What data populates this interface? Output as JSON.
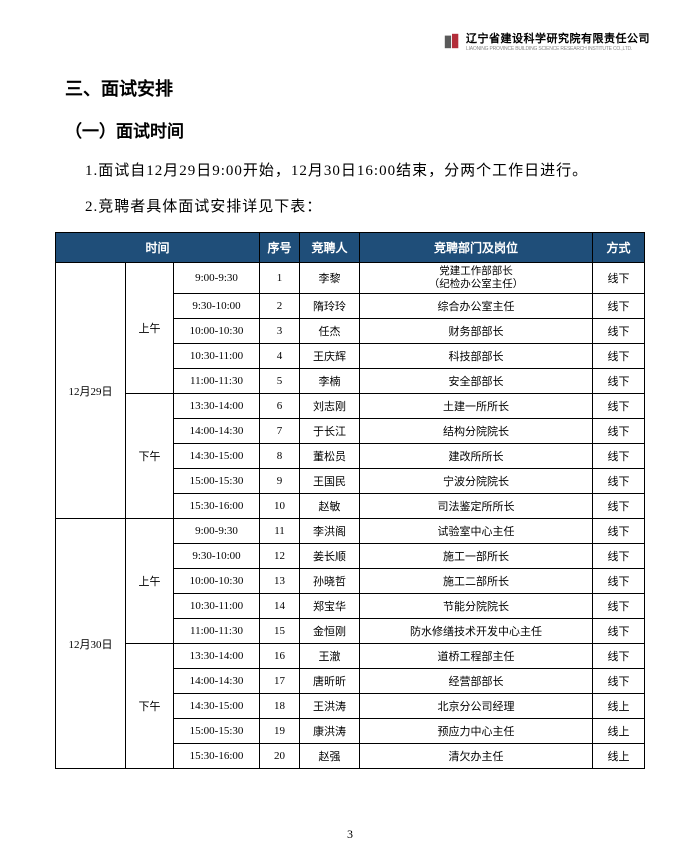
{
  "logo": {
    "company_name": "辽宁省建设科学研究院有限责任公司",
    "company_en": "LIAONING PROVINCE BUILDING SCIENCE RESEARCH INSTITUTE CO.,LTD.",
    "icon_color1": "#5a5a5a",
    "icon_color2": "#b32d3a"
  },
  "headings": {
    "section": "三、面试安排",
    "subsection": "（一）面试时间"
  },
  "paragraphs": {
    "p1": "1.面试自12月29日9:00开始，12月30日16:00结束，分两个工作日进行。",
    "p2": "2.竞聘者具体面试安排详见下表："
  },
  "table": {
    "headers": {
      "time": "时间",
      "seq": "序号",
      "name": "竞聘人",
      "dept": "竞聘部门及岗位",
      "method": "方式"
    },
    "days": [
      {
        "date": "12月29日",
        "sessions": [
          {
            "ampm": "上午",
            "rows": [
              {
                "slot": "9:00-9:30",
                "seq": "1",
                "name": "李黎",
                "dept": "党建工作部部长\n（纪检办公室主任）",
                "method": "线下"
              },
              {
                "slot": "9:30-10:00",
                "seq": "2",
                "name": "隋玲玲",
                "dept": "综合办公室主任",
                "method": "线下"
              },
              {
                "slot": "10:00-10:30",
                "seq": "3",
                "name": "任杰",
                "dept": "财务部部长",
                "method": "线下"
              },
              {
                "slot": "10:30-11:00",
                "seq": "4",
                "name": "王庆辉",
                "dept": "科技部部长",
                "method": "线下"
              },
              {
                "slot": "11:00-11:30",
                "seq": "5",
                "name": "李楠",
                "dept": "安全部部长",
                "method": "线下"
              }
            ]
          },
          {
            "ampm": "下午",
            "rows": [
              {
                "slot": "13:30-14:00",
                "seq": "6",
                "name": "刘志刚",
                "dept": "土建一所所长",
                "method": "线下"
              },
              {
                "slot": "14:00-14:30",
                "seq": "7",
                "name": "于长江",
                "dept": "结构分院院长",
                "method": "线下"
              },
              {
                "slot": "14:30-15:00",
                "seq": "8",
                "name": "董松员",
                "dept": "建改所所长",
                "method": "线下"
              },
              {
                "slot": "15:00-15:30",
                "seq": "9",
                "name": "王国民",
                "dept": "宁波分院院长",
                "method": "线下"
              },
              {
                "slot": "15:30-16:00",
                "seq": "10",
                "name": "赵敏",
                "dept": "司法鉴定所所长",
                "method": "线下"
              }
            ]
          }
        ]
      },
      {
        "date": "12月30日",
        "sessions": [
          {
            "ampm": "上午",
            "rows": [
              {
                "slot": "9:00-9:30",
                "seq": "11",
                "name": "李洪阁",
                "dept": "试验室中心主任",
                "method": "线下"
              },
              {
                "slot": "9:30-10:00",
                "seq": "12",
                "name": "姜长顺",
                "dept": "施工一部所长",
                "method": "线下"
              },
              {
                "slot": "10:00-10:30",
                "seq": "13",
                "name": "孙晓哲",
                "dept": "施工二部所长",
                "method": "线下"
              },
              {
                "slot": "10:30-11:00",
                "seq": "14",
                "name": "郑宝华",
                "dept": "节能分院院长",
                "method": "线下"
              },
              {
                "slot": "11:00-11:30",
                "seq": "15",
                "name": "金恒刚",
                "dept": "防水修缮技术开发中心主任",
                "method": "线下"
              }
            ]
          },
          {
            "ampm": "下午",
            "rows": [
              {
                "slot": "13:30-14:00",
                "seq": "16",
                "name": "王澈",
                "dept": "道桥工程部主任",
                "method": "线下"
              },
              {
                "slot": "14:00-14:30",
                "seq": "17",
                "name": "唐昕昕",
                "dept": "经营部部长",
                "method": "线下"
              },
              {
                "slot": "14:30-15:00",
                "seq": "18",
                "name": "王洪涛",
                "dept": "北京分公司经理",
                "method": "线上"
              },
              {
                "slot": "15:00-15:30",
                "seq": "19",
                "name": "康洪涛",
                "dept": "预应力中心主任",
                "method": "线上"
              },
              {
                "slot": "15:30-16:00",
                "seq": "20",
                "name": "赵强",
                "dept": "清欠办主任",
                "method": "线上"
              }
            ]
          }
        ]
      }
    ]
  },
  "page_number": "3"
}
